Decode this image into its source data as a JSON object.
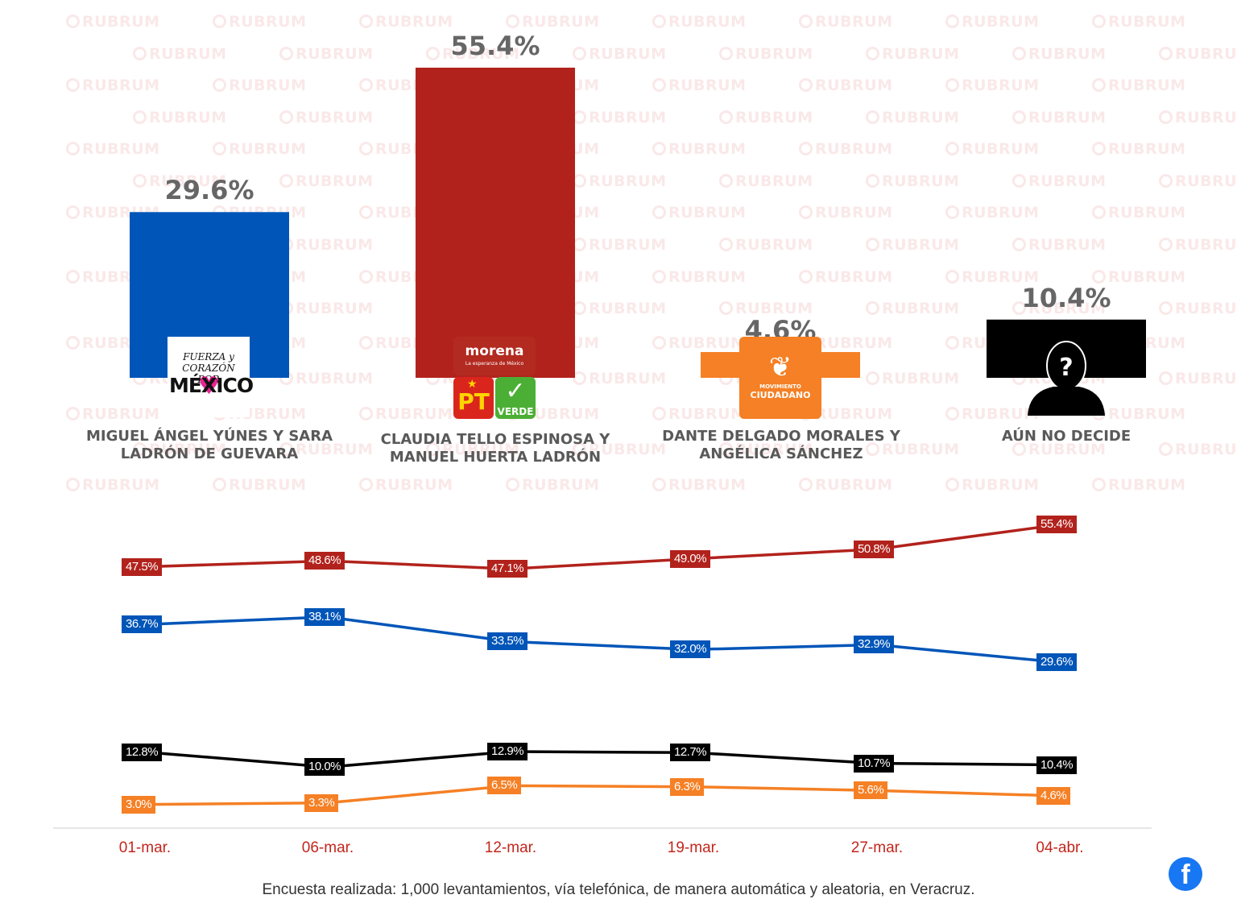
{
  "watermark_text": "RUBRUM",
  "chart_data": [
    {
      "type": "bar",
      "categories": [
        "MIGUEL ÁNGEL YÚNES Y SARA LADRÓN DE GUEVARA",
        "CLAUDIA TELLO ESPINOSA Y MANUEL HUERTA LADRÓN",
        "DANTE DELGADO MORALES Y ANGÉLICA SÁNCHEZ",
        "AÚN NO DECIDE"
      ],
      "values": [
        29.6,
        55.4,
        4.6,
        10.4
      ],
      "value_labels": [
        "29.6%",
        "55.4%",
        "4.6%",
        "10.4%"
      ],
      "colors": [
        "#0055b8",
        "#b2221c",
        "#f58025",
        "#000000"
      ],
      "ylim": [
        0,
        55.4
      ]
    },
    {
      "type": "line",
      "x": [
        "01-mar.",
        "06-mar.",
        "12-mar.",
        "19-mar.",
        "27-mar.",
        "04-abr."
      ],
      "series": [
        {
          "name": "MIGUEL ÁNGEL YÚNES Y SARA LADRÓN DE GUEVARA",
          "color": "#0055b8",
          "values": [
            36.7,
            38.1,
            33.5,
            32.0,
            32.9,
            29.6
          ],
          "labels": [
            "36.7%",
            "38.1%",
            "33.5%",
            "32.0%",
            "32.9%",
            "29.6%"
          ]
        },
        {
          "name": "CLAUDIA TELLO ESPINOSA Y MANUEL HUERTA LADRÓN",
          "color": "#b2221c",
          "values": [
            47.5,
            48.6,
            47.1,
            49.0,
            50.8,
            55.4
          ],
          "labels": [
            "47.5%",
            "48.6%",
            "47.1%",
            "49.0%",
            "50.8%",
            "55.4%"
          ]
        },
        {
          "name": "DANTE DELGADO MORALES Y ANGÉLICA SÁNCHEZ",
          "color": "#f58025",
          "values": [
            3.0,
            3.3,
            6.5,
            6.3,
            5.6,
            4.6
          ],
          "labels": [
            "3.0%",
            "3.3%",
            "6.5%",
            "6.3%",
            "5.6%",
            "4.6%"
          ]
        },
        {
          "name": "AÚN NO DECIDE",
          "color": "#000000",
          "values": [
            12.8,
            10.0,
            12.9,
            12.7,
            10.7,
            10.4
          ],
          "labels": [
            "12.8%",
            "10.0%",
            "12.9%",
            "12.7%",
            "10.7%",
            "10.4%"
          ]
        }
      ]
    }
  ],
  "logos": {
    "fuerza": {
      "line1": "FUERZA y CORAZÓN POR",
      "line2": "MÉXICO"
    },
    "morena": {
      "name": "morena",
      "tagline": "La esperanza de México"
    },
    "pt": {
      "name": "PT"
    },
    "verde": {
      "name": "VERDE"
    },
    "mc": {
      "line1": "MOVIMIENTO",
      "line2": "CIUDADANO"
    }
  },
  "footnote": "Encuesta realizada: 1,000 levantamientos, vía telefónica, de manera automática y aleatoria, en Veracruz."
}
